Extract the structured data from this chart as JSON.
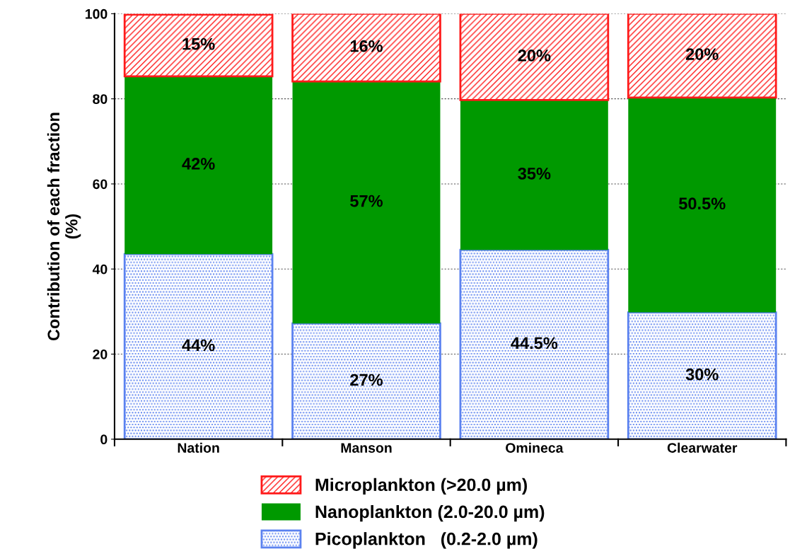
{
  "chart_data": {
    "type": "bar",
    "stacked": true,
    "ylabel": "Contribution of each fraction\n(%)",
    "categories": [
      "Nation",
      "Manson",
      "Omineca",
      "Clearwater"
    ],
    "series": [
      {
        "name": "Picoplankton   (0.2-2.0 µm)",
        "color": "#5b82f0",
        "values": [
          43.5,
          27.2,
          44.5,
          29.8
        ],
        "value_labels": [
          "44%",
          "27%",
          "44.5%",
          "30%"
        ]
      },
      {
        "name": "Nanoplankton (2.0-20.0 µm)",
        "color": "#009900",
        "values": [
          41.8,
          56.9,
          35.2,
          50.5
        ],
        "value_labels": [
          "42%",
          "57%",
          "35%",
          "50.5%"
        ]
      },
      {
        "name": "Microplankton (>20.0 µm)",
        "color": "#ff1a1a",
        "values": [
          14.5,
          15.9,
          20.3,
          19.7
        ],
        "value_labels": [
          "15%",
          "16%",
          "20%",
          "20%"
        ]
      }
    ],
    "ylim": [
      0,
      100
    ],
    "yticks": [
      0,
      20,
      40,
      60,
      80,
      100
    ],
    "grid": "y",
    "legend": "bottom"
  }
}
